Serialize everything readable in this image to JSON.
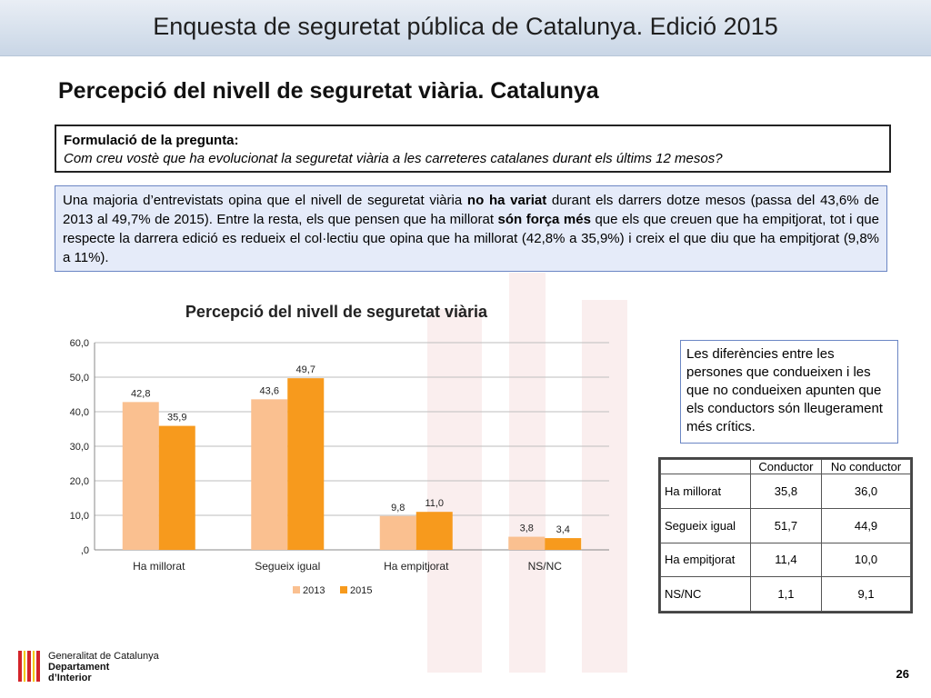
{
  "header": {
    "title": "Enquesta de seguretat pública de Catalunya. Edició 2015"
  },
  "section": {
    "title": "Percepció del nivell de seguretat viària. Catalunya"
  },
  "question": {
    "label": "Formulació de la pregunta:",
    "text": "Com creu vostè que ha evolucionat la seguretat viària a les carreteres catalanes durant els últims 12 mesos?"
  },
  "summary": {
    "p1": "Una majoria d’entrevistats opina que el nivell de seguretat viària ",
    "b1": "no ha variat",
    "p2": " durant els darrers dotze mesos (passa del 43,6% de 2013 al 49,7% de 2015). Entre la resta, els que pensen que ha millorat ",
    "b2": "són força més",
    "p3": " que els que creuen que ha empitjorat, tot i que respecte la darrera edició es redueix el col·lectiu que opina que ha millorat (42,8% a 35,9%) i creix el que diu que ha empitjorat (9,8% a 11%)."
  },
  "chart_data": {
    "type": "bar",
    "title": "Percepció del nivell de seguretat viària",
    "categories": [
      "Ha millorat",
      "Segueix igual",
      "Ha empitjorat",
      "NS/NC"
    ],
    "series": [
      {
        "name": "2013",
        "values": [
          42.8,
          43.6,
          9.8,
          3.8
        ],
        "labels": [
          "42,8",
          "43,6",
          "9,8",
          "3,8"
        ],
        "color": "#fac090"
      },
      {
        "name": "2015",
        "values": [
          35.9,
          49.7,
          11.0,
          3.4
        ],
        "labels": [
          "35,9",
          "49,7",
          "11,0",
          "3,4"
        ],
        "color": "#f79a1d"
      }
    ],
    "ylim": [
      0,
      60
    ],
    "yticks": [
      0,
      10,
      20,
      30,
      40,
      50,
      60
    ],
    "ytick_labels": [
      ",0",
      "10,0",
      "20,0",
      "30,0",
      "40,0",
      "50,0",
      "60,0"
    ],
    "xlabel": "",
    "ylabel": "",
    "grid": true,
    "legend": "bottom"
  },
  "note": {
    "text": "Les diferències entre les persones que condueixen i les que no condueixen apunten que els conductors són lleugerament més crítics."
  },
  "drivers_table": {
    "headers": [
      "",
      "Conductor",
      "No conductor"
    ],
    "rows": [
      {
        "label": "Ha millorat",
        "conductor": "35,8",
        "no_conductor": "36,0"
      },
      {
        "label": "Segueix igual",
        "conductor": "51,7",
        "no_conductor": "44,9"
      },
      {
        "label": "Ha empitjorat",
        "conductor": "11,4",
        "no_conductor": "10,0"
      },
      {
        "label": "NS/NC",
        "conductor": "1,1",
        "no_conductor": "9,1"
      }
    ]
  },
  "logo": {
    "line1": "Generalitat de Catalunya",
    "line2": "Departament",
    "line3": "d’Interior"
  },
  "footer": {
    "page_number": "26"
  }
}
